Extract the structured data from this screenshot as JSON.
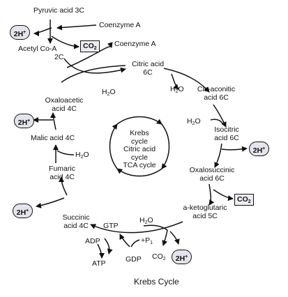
{
  "pyruvic": "Pyruvic acid 3C",
  "coenzyme_a_in": "Coenzyme A",
  "coenzyme_a_out": "Coenzyme A",
  "acetyl_coa": "Acetyl Co-A",
  "two_c": "2C",
  "citric": [
    "Citric acid",
    "6C"
  ],
  "cis_aconitic": [
    "Cis-aconitic",
    "acid 6C"
  ],
  "isocitric": [
    "Isocitric",
    "acid 6C"
  ],
  "oxalosuccinic": [
    "Oxalosuccinic",
    "acid 6C"
  ],
  "ketoglutaric": [
    "a-ketoglutaric",
    "acid 5C"
  ],
  "succinic": [
    "Succinic",
    "acid 4C"
  ],
  "fumaric": [
    "Fumaric",
    "acid 4C"
  ],
  "malic": "Malic acid 4C",
  "oxaloacetic": [
    "Oxaloacetic",
    "acid 4C"
  ],
  "water": {
    "base": "H",
    "sub": "2",
    "tail": "O"
  },
  "co2": {
    "base": "CO",
    "sub": "2"
  },
  "two_h": {
    "base": "2H",
    "sup": "+"
  },
  "gtp": "GTP",
  "gdp": "GDP",
  "adp": "ADP",
  "atp": "ATP",
  "pi": {
    "base": "+P",
    "sub": "1"
  },
  "center": [
    "Krebs",
    "cycle",
    "Citric acid",
    "cycle",
    "TCA cycle"
  ],
  "caption": "Krebs Cycle"
}
